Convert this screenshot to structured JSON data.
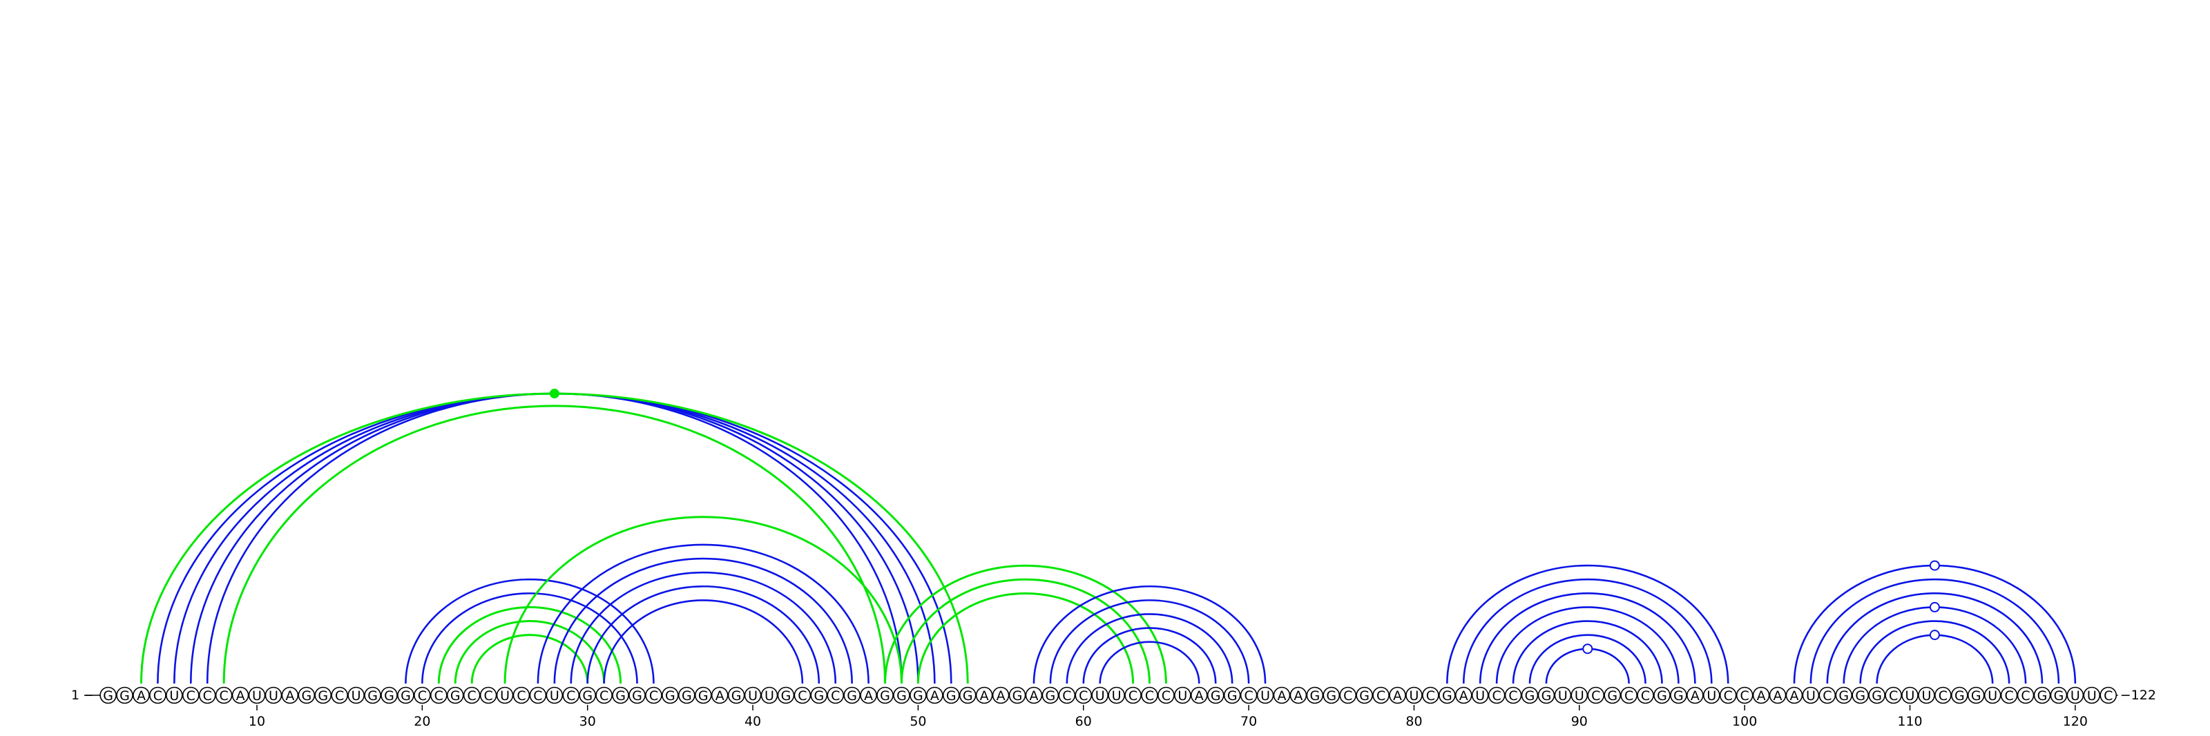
{
  "sequence": "GGACUCCCAUUAGGCUGGGCCGCCUCCUCGCGGCGGGAGUUGCGCGAGGGAGGAAGAGCCUUCCCUAGGCUAAGGCGCAUCGAUCCGGUUCGCCGGAUCCAAAUCGGGCUUCGGUCCGGUUC",
  "length": 122,
  "start_label": "1",
  "end_label": "122",
  "tick_labels": [
    "10",
    "20",
    "30",
    "40",
    "50",
    "60",
    "70",
    "80",
    "90",
    "100",
    "110",
    "120"
  ],
  "colors": {
    "blue": "#0a14e6",
    "green": "#00e600",
    "black": "#000000"
  },
  "arc_groups": [
    {
      "id": "outer-long-helix",
      "color": "blue",
      "pairs": [
        [
          4,
          52
        ],
        [
          5,
          51
        ],
        [
          6,
          50
        ],
        [
          7,
          49
        ]
      ]
    },
    {
      "id": "outer-long-green",
      "color": "green",
      "pairs": [
        [
          3,
          53
        ],
        [
          8,
          48
        ]
      ]
    },
    {
      "id": "helix-20",
      "color": "blue",
      "pairs": [
        [
          19,
          34
        ],
        [
          20,
          33
        ]
      ]
    },
    {
      "id": "helix-20-green",
      "color": "green",
      "pairs": [
        [
          21,
          32
        ],
        [
          22,
          31
        ],
        [
          23,
          30
        ]
      ]
    },
    {
      "id": "green-crossing",
      "color": "green",
      "pairs": [
        [
          25,
          49
        ]
      ]
    },
    {
      "id": "helix-27",
      "color": "blue",
      "pairs": [
        [
          27,
          47
        ],
        [
          28,
          46
        ],
        [
          29,
          45
        ],
        [
          30,
          44
        ],
        [
          31,
          43
        ]
      ]
    },
    {
      "id": "green-pk-50",
      "color": "green",
      "pairs": [
        [
          48,
          65
        ],
        [
          49,
          64
        ],
        [
          50,
          63
        ]
      ]
    },
    {
      "id": "helix-57",
      "color": "blue",
      "pairs": [
        [
          57,
          71
        ],
        [
          58,
          70
        ],
        [
          59,
          69
        ],
        [
          60,
          68
        ],
        [
          61,
          67
        ]
      ]
    },
    {
      "id": "helix-82",
      "color": "blue",
      "pairs": [
        [
          82,
          99
        ],
        [
          83,
          98
        ],
        [
          84,
          97
        ],
        [
          85,
          96
        ],
        [
          86,
          95
        ],
        [
          87,
          94
        ],
        [
          88,
          93
        ]
      ]
    },
    {
      "id": "helix-103",
      "color": "blue",
      "pairs": [
        [
          103,
          120
        ],
        [
          104,
          119
        ],
        [
          105,
          118
        ],
        [
          106,
          117
        ],
        [
          107,
          116
        ],
        [
          108,
          115
        ]
      ]
    }
  ],
  "markers": [
    {
      "pair": [
        3,
        53
      ],
      "type": "filled",
      "color": "green"
    },
    {
      "pair": [
        88,
        93
      ],
      "type": "open",
      "color": "blue"
    },
    {
      "pair": [
        103,
        120
      ],
      "type": "open",
      "color": "blue"
    },
    {
      "pair": [
        106,
        117
      ],
      "type": "open",
      "color": "blue"
    },
    {
      "pair": [
        108,
        115
      ],
      "type": "open",
      "color": "blue"
    }
  ]
}
